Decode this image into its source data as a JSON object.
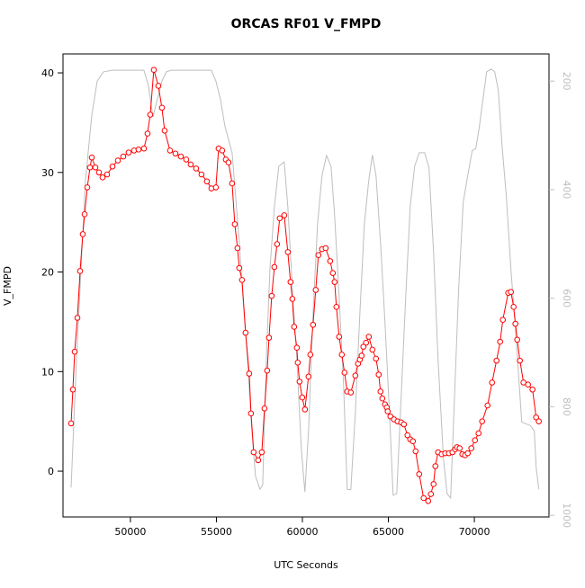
{
  "chart_data": {
    "type": "scatter-line",
    "title": "ORCAS RF01 V_FMPD",
    "xlabel": "UTC Seconds",
    "ylabel": "V_FMPD",
    "xlim": [
      46080,
      74340
    ],
    "ylim": [
      -4.6,
      41.9
    ],
    "y2lim": [
      1003,
      150
    ],
    "xticks": [
      50000,
      55000,
      60000,
      65000,
      70000
    ],
    "yticks": [
      0,
      10,
      20,
      30,
      40
    ],
    "y2ticks": [
      200,
      400,
      600,
      800,
      1000
    ],
    "color": "#ff0000",
    "x": [
      46551,
      46655,
      46760,
      46917,
      47074,
      47231,
      47335,
      47492,
      47649,
      47754,
      47963,
      48172,
      48381,
      48643,
      48957,
      49270,
      49584,
      49898,
      50212,
      50473,
      50787,
      50996,
      51153,
      51362,
      51624,
      51833,
      51990,
      52304,
      52618,
      52931,
      53245,
      53507,
      53820,
      54134,
      54448,
      54710,
      54971,
      55128,
      55337,
      55546,
      55703,
      55912,
      56069,
      56226,
      56331,
      56488,
      56697,
      56906,
      57011,
      57168,
      57429,
      57638,
      57795,
      57952,
      58057,
      58214,
      58371,
      58527,
      58684,
      58946,
      59155,
      59312,
      59417,
      59521,
      59678,
      59730,
      59835,
      59992,
      60149,
      60358,
      60463,
      60619,
      60776,
      60933,
      61142,
      61352,
      61613,
      61770,
      61875,
      61979,
      62136,
      62293,
      62450,
      62607,
      62816,
      63078,
      63234,
      63339,
      63444,
      63548,
      63705,
      63862,
      64071,
      64280,
      64437,
      64542,
      64647,
      64803,
      64908,
      64960,
      65117,
      65326,
      65536,
      65745,
      65902,
      66111,
      66268,
      66425,
      66582,
      66791,
      67052,
      67314,
      67471,
      67628,
      67732,
      67889,
      68098,
      68308,
      68517,
      68726,
      68883,
      68987,
      69144,
      69301,
      69458,
      69615,
      69824,
      70033,
      70243,
      70452,
      70766,
      71027,
      71289,
      71498,
      71655,
      71969,
      72125,
      72282,
      72387,
      72492,
      72648,
      72858,
      73119,
      73381,
      73590,
      73747
    ],
    "values": [
      4.8,
      8.2,
      12.0,
      15.4,
      20.1,
      23.8,
      25.8,
      28.5,
      30.5,
      31.5,
      30.5,
      30.0,
      29.5,
      29.8,
      30.6,
      31.2,
      31.6,
      32.0,
      32.2,
      32.3,
      32.4,
      33.9,
      35.8,
      40.3,
      38.7,
      36.5,
      34.2,
      32.2,
      31.9,
      31.6,
      31.3,
      30.8,
      30.4,
      29.8,
      29.1,
      28.4,
      28.5,
      32.4,
      32.2,
      31.3,
      31.0,
      28.9,
      24.8,
      22.4,
      20.4,
      19.2,
      13.9,
      9.8,
      5.8,
      1.9,
      1.1,
      1.9,
      6.3,
      10.1,
      13.4,
      17.6,
      20.5,
      22.8,
      25.4,
      25.7,
      22.0,
      19.0,
      17.3,
      14.5,
      12.4,
      10.9,
      9.0,
      7.4,
      6.2,
      9.5,
      11.7,
      14.7,
      18.2,
      21.7,
      22.3,
      22.4,
      21.1,
      19.9,
      19.0,
      16.5,
      13.5,
      11.7,
      9.9,
      8.0,
      7.9,
      9.6,
      10.8,
      11.2,
      11.6,
      12.5,
      12.9,
      13.5,
      12.2,
      11.3,
      9.7,
      8.0,
      7.3,
      6.7,
      6.4,
      6.0,
      5.5,
      5.2,
      5.0,
      4.9,
      4.7,
      3.6,
      3.2,
      3.0,
      2.0,
      -0.3,
      -2.7,
      -3.0,
      -2.3,
      -1.3,
      0.5,
      1.9,
      1.7,
      1.8,
      1.8,
      1.9,
      2.2,
      2.4,
      2.3,
      1.7,
      1.6,
      1.8,
      2.3,
      3.1,
      3.8,
      5.0,
      6.6,
      8.9,
      11.1,
      13.0,
      15.2,
      17.9,
      18.0,
      16.5,
      14.8,
      13.2,
      11.1,
      8.9,
      8.7,
      8.2,
      5.4,
      5.0
    ],
    "y2_series": {
      "axis": "y2",
      "color": "#bebebe",
      "x": [
        46551,
        46865,
        47388,
        47754,
        48067,
        48434,
        48957,
        50787,
        51049,
        51310,
        51572,
        51833,
        52095,
        52356,
        54710,
        54971,
        55233,
        55494,
        55912,
        56122,
        56331,
        56540,
        56802,
        57063,
        57272,
        57534,
        57691,
        57900,
        58109,
        58371,
        58632,
        58946,
        59155,
        59417,
        59678,
        59940,
        60149,
        60358,
        60619,
        60881,
        61142,
        61404,
        61665,
        61875,
        62136,
        62398,
        62607,
        62816,
        63078,
        63339,
        63601,
        63862,
        64071,
        64280,
        64542,
        64803,
        65065,
        65274,
        65483,
        65745,
        66006,
        66268,
        66529,
        66791,
        67105,
        67366,
        67628,
        67889,
        68203,
        68412,
        68621,
        68831,
        69092,
        69354,
        69615,
        69877,
        70086,
        70295,
        70504,
        70713,
        70975,
        71184,
        71393,
        71602,
        71864,
        72125,
        72439,
        72753,
        73276,
        73485,
        73590,
        73747
      ],
      "values": [
        949,
        712,
        382,
        263,
        200,
        183,
        180,
        180,
        208,
        266,
        233,
        200,
        183,
        180,
        180,
        200,
        233,
        283,
        332,
        415,
        498,
        597,
        712,
        845,
        928,
        952,
        944,
        712,
        547,
        431,
        357,
        349,
        431,
        580,
        712,
        878,
        957,
        845,
        630,
        464,
        374,
        337,
        357,
        448,
        597,
        762,
        952,
        953,
        812,
        630,
        464,
        382,
        336,
        374,
        498,
        646,
        812,
        963,
        960,
        779,
        597,
        431,
        357,
        332,
        332,
        360,
        514,
        712,
        895,
        960,
        968,
        795,
        580,
        423,
        374,
        328,
        324,
        283,
        233,
        183,
        178,
        183,
        217,
        316,
        415,
        547,
        679,
        828,
        835,
        845,
        911,
        952
      ]
    }
  }
}
